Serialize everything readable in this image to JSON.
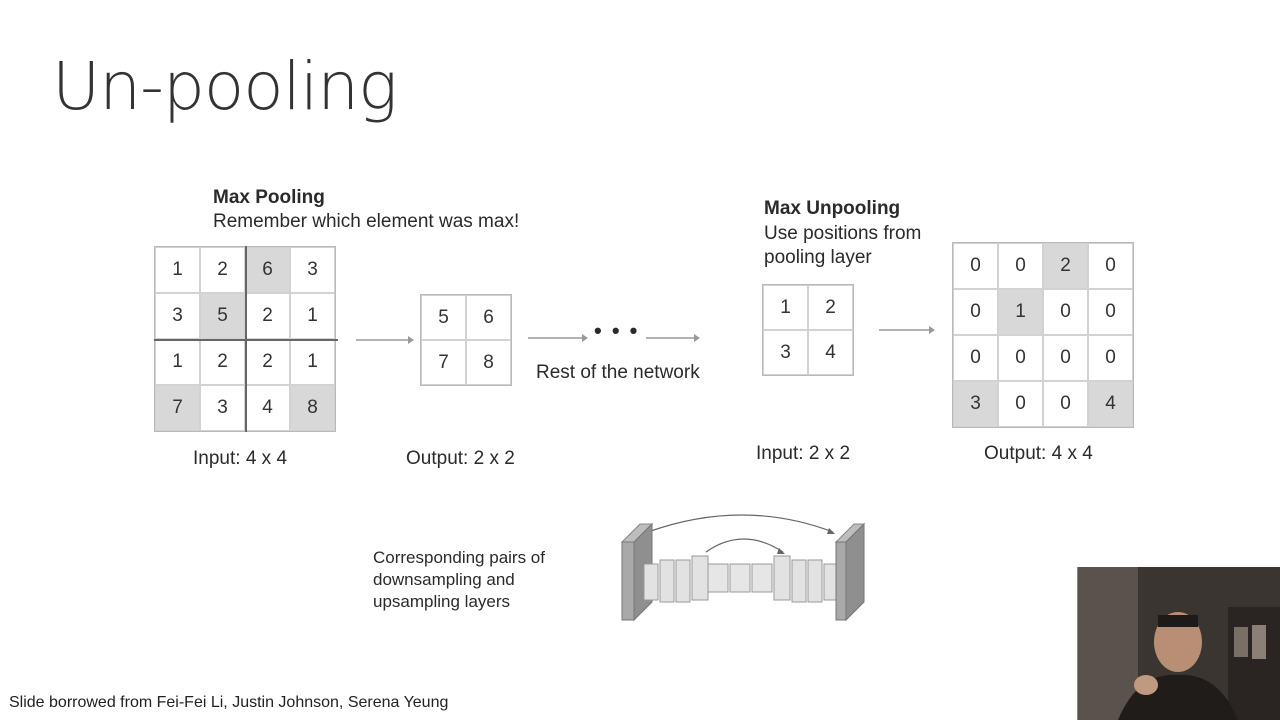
{
  "slide": {
    "title": "Un-pooling",
    "footer": "Slide borrowed from Fei-Fei Li, Justin Johnson, Serena Yeung"
  },
  "max_pooling": {
    "heading": "Max Pooling",
    "subtitle": "Remember which element was max!",
    "input_caption": "Input: 4 x 4",
    "output_caption": "Output: 2 x 2",
    "input_grid": [
      [
        "1",
        "2",
        "6",
        "3"
      ],
      [
        "3",
        "5",
        "2",
        "1"
      ],
      [
        "1",
        "2",
        "2",
        "1"
      ],
      [
        "7",
        "3",
        "4",
        "8"
      ]
    ],
    "output_grid": [
      [
        "5",
        "6"
      ],
      [
        "7",
        "8"
      ]
    ],
    "rest_label": "Rest of the network",
    "ellipsis": "• • •"
  },
  "max_unpooling": {
    "heading": "Max Unpooling",
    "subtitle_line1": "Use positions from",
    "subtitle_line2": "pooling layer",
    "input_caption": "Input: 2 x 2",
    "output_caption": "Output: 4 x 4",
    "input_grid": [
      [
        "1",
        "2"
      ],
      [
        "3",
        "4"
      ]
    ],
    "output_grid": [
      [
        "0",
        "0",
        "2",
        "0"
      ],
      [
        "0",
        "1",
        "0",
        "0"
      ],
      [
        "0",
        "0",
        "0",
        "0"
      ],
      [
        "3",
        "0",
        "0",
        "4"
      ]
    ]
  },
  "unet_note": {
    "line1": "Corresponding pairs of",
    "line2": "downsampling and",
    "line3": "upsampling layers"
  },
  "colors": {
    "highlight": "#d8d8d8",
    "grid_border": "#d2d2d2",
    "arrow": "#999999"
  }
}
